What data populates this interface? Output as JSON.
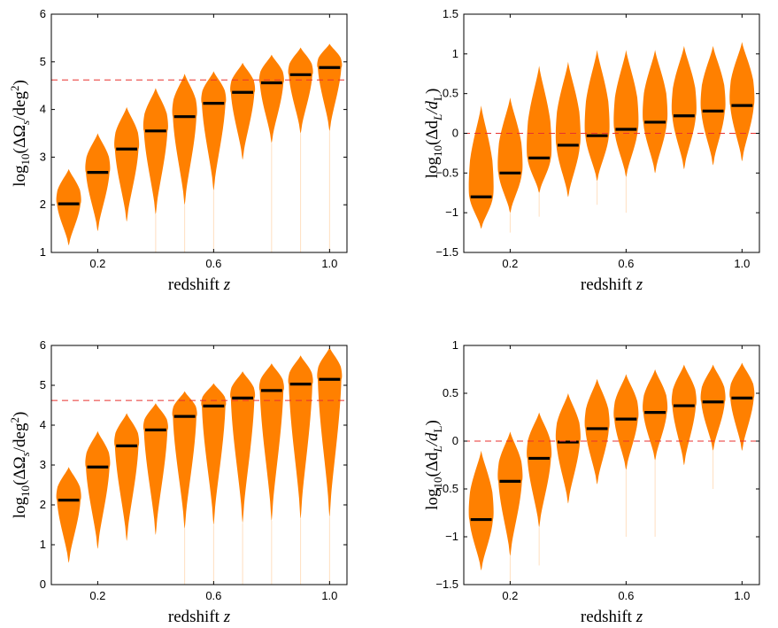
{
  "chart_data": [
    {
      "type": "violin",
      "id": "top-left",
      "xlabel": "redshift",
      "xlabel_var": "z",
      "ylabel": "log10(ΔΩs/deg²)",
      "ylabel_parts": {
        "fn": "log",
        "sub": "10",
        "pre": "(ΔΩ",
        "sub2": "s",
        "mid": "/deg",
        "sup": "2",
        "post": ")"
      },
      "ylim": [
        1,
        6
      ],
      "yticks": [
        "1",
        "2",
        "3",
        "4",
        "5",
        "6"
      ],
      "ytick_values": [
        1,
        2,
        3,
        4,
        5,
        6
      ],
      "xlim": [
        0.04,
        1.06
      ],
      "xticks": [
        "0.2",
        "0.6",
        "1.0"
      ],
      "xtick_values": [
        0.2,
        0.6,
        1.0
      ],
      "reference_line": 4.62,
      "colors": {
        "violin": "#ff8000",
        "median": "#000000",
        "reference": "#e8312f"
      },
      "z": [
        0.1,
        0.2,
        0.3,
        0.4,
        0.5,
        0.6,
        0.7,
        0.8,
        0.9,
        1.0
      ],
      "median": [
        2.02,
        2.68,
        3.17,
        3.55,
        3.85,
        4.13,
        4.36,
        4.56,
        4.73,
        4.88
      ],
      "min": [
        1.15,
        1.45,
        1.65,
        1.8,
        2.0,
        2.3,
        2.95,
        3.3,
        3.5,
        3.55
      ],
      "max": [
        2.75,
        3.5,
        4.05,
        4.45,
        4.75,
        4.8,
        4.98,
        5.15,
        5.3,
        5.38
      ],
      "tail_min": [
        null,
        null,
        null,
        1.0,
        1.0,
        1.0,
        null,
        1.0,
        1.0,
        1.0
      ]
    },
    {
      "type": "violin",
      "id": "top-right",
      "xlabel": "redshift",
      "xlabel_var": "z",
      "ylabel": "log10(ΔdL/dL)",
      "ylabel_parts": {
        "fn": "log",
        "sub": "10",
        "pre": "(Δd",
        "sub2": "L",
        "mid": "/d",
        "sub3": "L",
        "post": ")"
      },
      "ylim": [
        -1.5,
        1.5
      ],
      "yticks": [
        "−1.5",
        "−1",
        "−0.5",
        "0",
        "0.5",
        "1",
        "1.5"
      ],
      "ytick_values": [
        -1.5,
        -1,
        -0.5,
        0,
        0.5,
        1,
        1.5
      ],
      "xlim": [
        0.04,
        1.06
      ],
      "xticks": [
        "0.2",
        "0.6",
        "1.0"
      ],
      "xtick_values": [
        0.2,
        0.6,
        1.0
      ],
      "reference_line": 0,
      "colors": {
        "violin": "#ff8000",
        "median": "#000000",
        "reference": "#e8312f"
      },
      "z": [
        0.1,
        0.2,
        0.3,
        0.4,
        0.5,
        0.6,
        0.7,
        0.8,
        0.9,
        1.0
      ],
      "median": [
        -0.8,
        -0.5,
        -0.31,
        -0.15,
        -0.03,
        0.05,
        0.14,
        0.22,
        0.28,
        0.35
      ],
      "min": [
        -1.2,
        -1.0,
        -0.75,
        -0.8,
        -0.6,
        -0.55,
        -0.5,
        -0.45,
        -0.4,
        -0.35
      ],
      "max": [
        0.35,
        0.45,
        0.85,
        0.9,
        1.05,
        1.05,
        1.05,
        1.1,
        1.1,
        1.15
      ],
      "tail_min": [
        null,
        -1.25,
        -1.05,
        null,
        -0.9,
        -1.0,
        null,
        null,
        null,
        null
      ]
    },
    {
      "type": "violin",
      "id": "bottom-left",
      "xlabel": "redshift",
      "xlabel_var": "z",
      "ylabel": "log10(ΔΩs/deg²)",
      "ylabel_parts": {
        "fn": "log",
        "sub": "10",
        "pre": "(ΔΩ",
        "sub2": "s",
        "mid": "/deg",
        "sup": "2",
        "post": ")"
      },
      "ylim": [
        0,
        6
      ],
      "yticks": [
        "0",
        "1",
        "2",
        "3",
        "4",
        "5",
        "6"
      ],
      "ytick_values": [
        0,
        1,
        2,
        3,
        4,
        5,
        6
      ],
      "xlim": [
        0.04,
        1.06
      ],
      "xticks": [
        "0.2",
        "0.6",
        "1.0"
      ],
      "xtick_values": [
        0.2,
        0.6,
        1.0
      ],
      "reference_line": 4.62,
      "colors": {
        "violin": "#ff8000",
        "median": "#000000",
        "reference": "#e8312f"
      },
      "z": [
        0.1,
        0.2,
        0.3,
        0.4,
        0.5,
        0.6,
        0.7,
        0.8,
        0.9,
        1.0
      ],
      "median": [
        2.12,
        2.95,
        3.48,
        3.88,
        4.22,
        4.48,
        4.68,
        4.87,
        5.03,
        5.15
      ],
      "min": [
        0.55,
        0.9,
        1.1,
        1.25,
        1.4,
        1.5,
        1.55,
        1.6,
        1.65,
        1.7
      ],
      "max": [
        2.95,
        3.85,
        4.3,
        4.55,
        4.85,
        5.05,
        5.35,
        5.55,
        5.75,
        5.95
      ],
      "tail_min": [
        null,
        null,
        null,
        null,
        0.0,
        0.0,
        0.0,
        0.0,
        0.0,
        0.0
      ]
    },
    {
      "type": "violin",
      "id": "bottom-right",
      "xlabel": "redshift",
      "xlabel_var": "z",
      "ylabel": "log10(ΔdL/dL)",
      "ylabel_parts": {
        "fn": "log",
        "sub": "10",
        "pre": "(Δd",
        "sub2": "L",
        "mid": "/d",
        "sub3": "L",
        "post": ")"
      },
      "ylim": [
        -1.5,
        1.0
      ],
      "yticks": [
        "−1.5",
        "−1",
        "−0.5",
        "0",
        "0.5",
        "1"
      ],
      "ytick_values": [
        -1.5,
        -1,
        -0.5,
        0,
        0.5,
        1
      ],
      "xlim": [
        0.04,
        1.06
      ],
      "xticks": [
        "0.2",
        "0.6",
        "1.0"
      ],
      "xtick_values": [
        0.2,
        0.6,
        1.0
      ],
      "reference_line": 0,
      "colors": {
        "violin": "#ff8000",
        "median": "#000000",
        "reference": "#e8312f"
      },
      "z": [
        0.1,
        0.2,
        0.3,
        0.4,
        0.5,
        0.6,
        0.7,
        0.8,
        0.9,
        1.0
      ],
      "median": [
        -0.82,
        -0.42,
        -0.18,
        -0.01,
        0.13,
        0.23,
        0.3,
        0.37,
        0.41,
        0.45
      ],
      "min": [
        -1.35,
        -1.2,
        -0.9,
        -0.65,
        -0.45,
        -0.3,
        -0.2,
        -0.25,
        -0.1,
        -0.1
      ],
      "max": [
        -0.1,
        0.1,
        0.3,
        0.5,
        0.65,
        0.7,
        0.75,
        0.8,
        0.8,
        0.82
      ],
      "tail_min": [
        null,
        -1.5,
        -1.3,
        null,
        null,
        -1.0,
        -1.0,
        null,
        -0.5,
        null
      ]
    }
  ]
}
